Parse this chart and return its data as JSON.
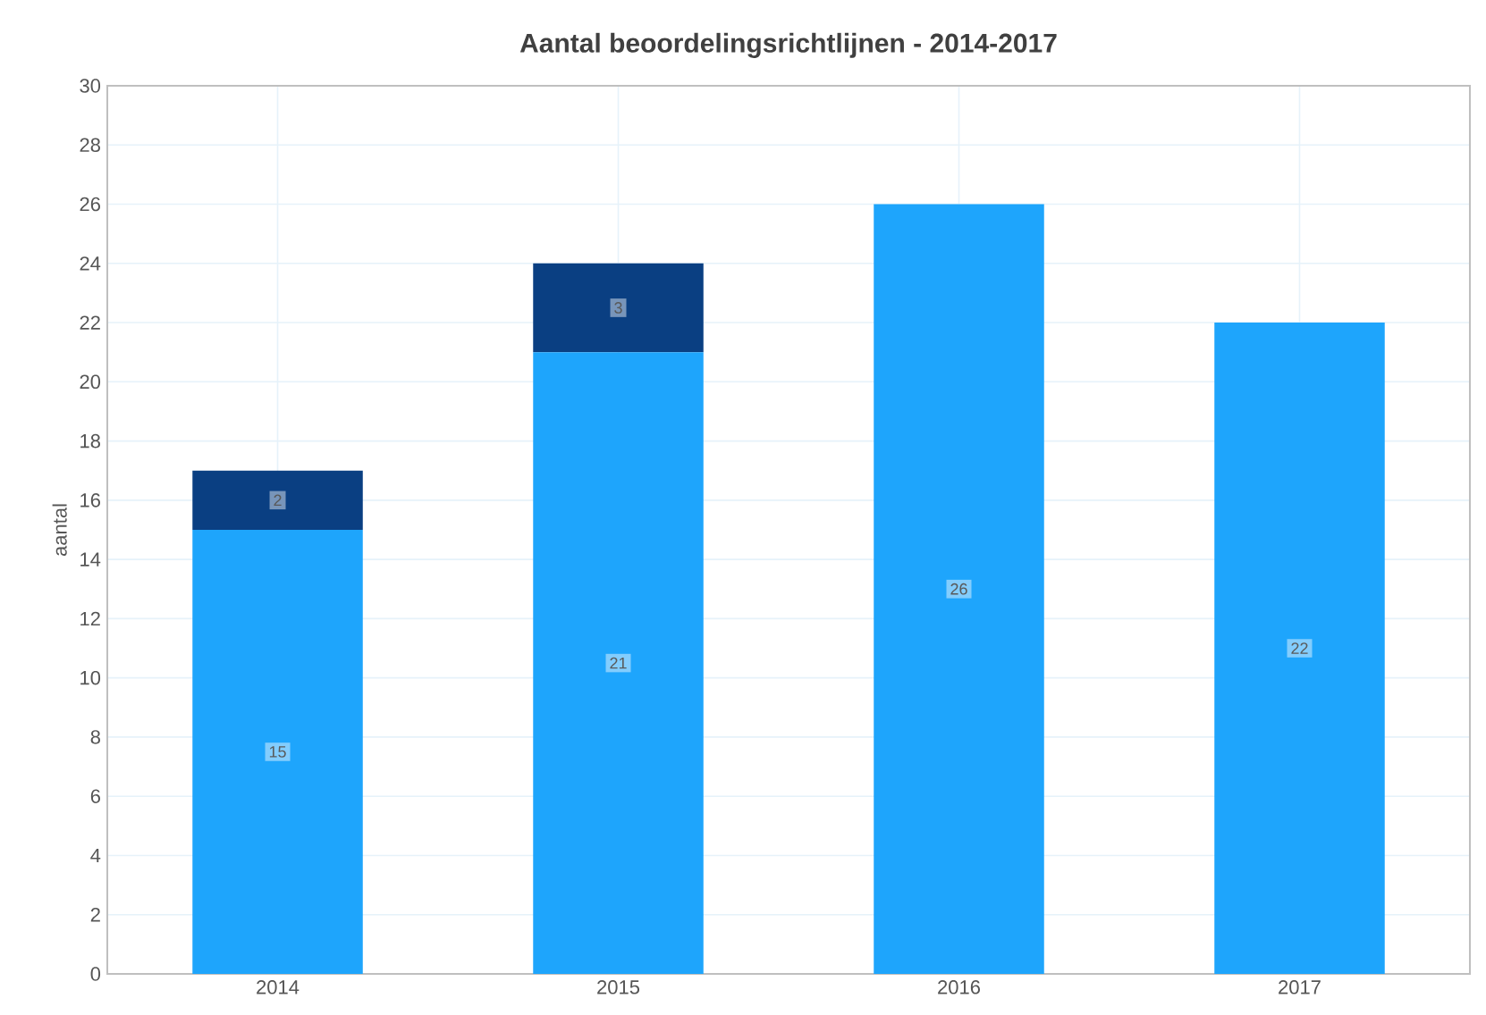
{
  "chart_data": {
    "type": "bar",
    "title": "Aantal beoordelingsrichtlijnen - 2014-2017",
    "ylabel": "aantal",
    "categories": [
      "2014",
      "2015",
      "2016",
      "2017"
    ],
    "series": [
      {
        "color": "#1ea5fc",
        "values": [
          15,
          21,
          26,
          22
        ]
      },
      {
        "color": "#0a3f82",
        "values": [
          2,
          3,
          null,
          null
        ]
      }
    ],
    "stacked": true,
    "data_labels": true,
    "grid": true,
    "ylim": [
      0,
      30
    ],
    "yticks": [
      0,
      2,
      4,
      6,
      8,
      10,
      12,
      14,
      16,
      18,
      20,
      22,
      24,
      26,
      28,
      30
    ]
  }
}
